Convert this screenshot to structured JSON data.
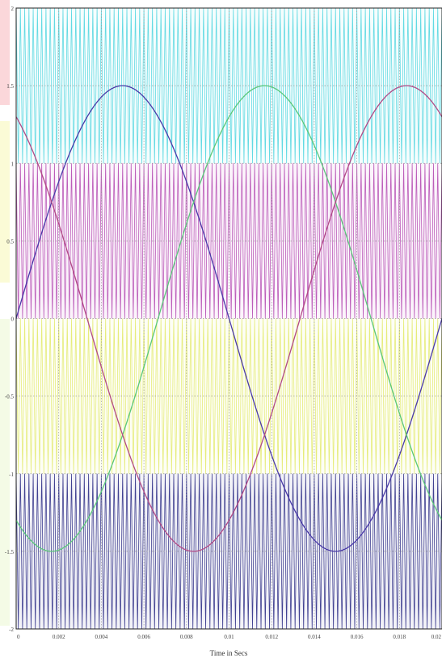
{
  "chart_data": {
    "type": "line",
    "title": "",
    "xlabel": "Time in Secs",
    "ylabel": "",
    "xlim": [
      0,
      0.02
    ],
    "ylim": [
      -2,
      2
    ],
    "x_ticks": [
      "0",
      "0.002",
      "0.004",
      "0.006",
      "0.008",
      "0.01",
      "0.012",
      "0.014",
      "0.016",
      "0.018",
      "0.02"
    ],
    "y_ticks": [
      "2",
      "1.5",
      "1",
      "0.5",
      "0",
      "-0.5",
      "-1",
      "-1.5",
      "-2"
    ],
    "grid": true,
    "modulating_signals": {
      "amplitude": 1.5,
      "frequency_hz": 50,
      "phases_deg": [
        0,
        -120,
        120
      ],
      "colors": [
        "#4a3aa8",
        "#5ac77a",
        "#b24a86"
      ]
    },
    "carrier_signals": {
      "frequency_hz": 5000,
      "bands": [
        {
          "ymin": 1,
          "ymax": 2,
          "color": "#52d6e0"
        },
        {
          "ymin": 0,
          "ymax": 1,
          "color": "#b54bb3"
        },
        {
          "ymin": -1,
          "ymax": 0,
          "color": "#e3ea6e"
        },
        {
          "ymin": -2,
          "ymax": -1,
          "color": "#2d2d86"
        }
      ]
    },
    "grid_color": "#9a9a9a"
  }
}
